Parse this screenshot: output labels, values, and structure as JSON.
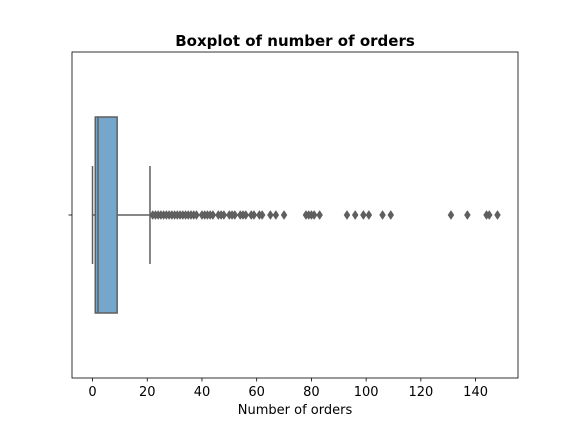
{
  "chart_data": {
    "type": "boxplot",
    "orientation": "horizontal",
    "title": "Boxplot of number of orders",
    "xlabel": "Number of orders",
    "ylabel": "",
    "xlim": [
      -7.5,
      155.5
    ],
    "xticks": [
      0,
      20,
      40,
      60,
      80,
      100,
      120,
      140
    ],
    "xtick_labels": [
      "0",
      "20",
      "40",
      "60",
      "80",
      "100",
      "120",
      "140"
    ],
    "grid": false,
    "legend": "none",
    "stats": {
      "whisker_low": 0,
      "q1": 1,
      "median": 2,
      "q3": 9,
      "whisker_high": 21
    },
    "outliers": [
      22,
      23,
      24,
      25,
      26,
      27,
      28,
      29,
      30,
      31,
      32,
      33,
      34,
      35,
      36,
      37,
      38,
      40,
      41,
      42,
      43,
      44,
      46,
      47,
      48,
      50,
      51,
      52,
      54,
      55,
      56,
      58,
      59,
      61,
      62,
      65,
      67,
      70,
      78,
      79,
      80,
      81,
      83,
      93,
      96,
      99,
      101,
      106,
      109,
      131,
      137,
      144,
      145,
      148
    ],
    "colors": {
      "box_fill": "#75a7cc",
      "line": "#5f5f5f",
      "outlier": "#5f5f5f"
    }
  }
}
